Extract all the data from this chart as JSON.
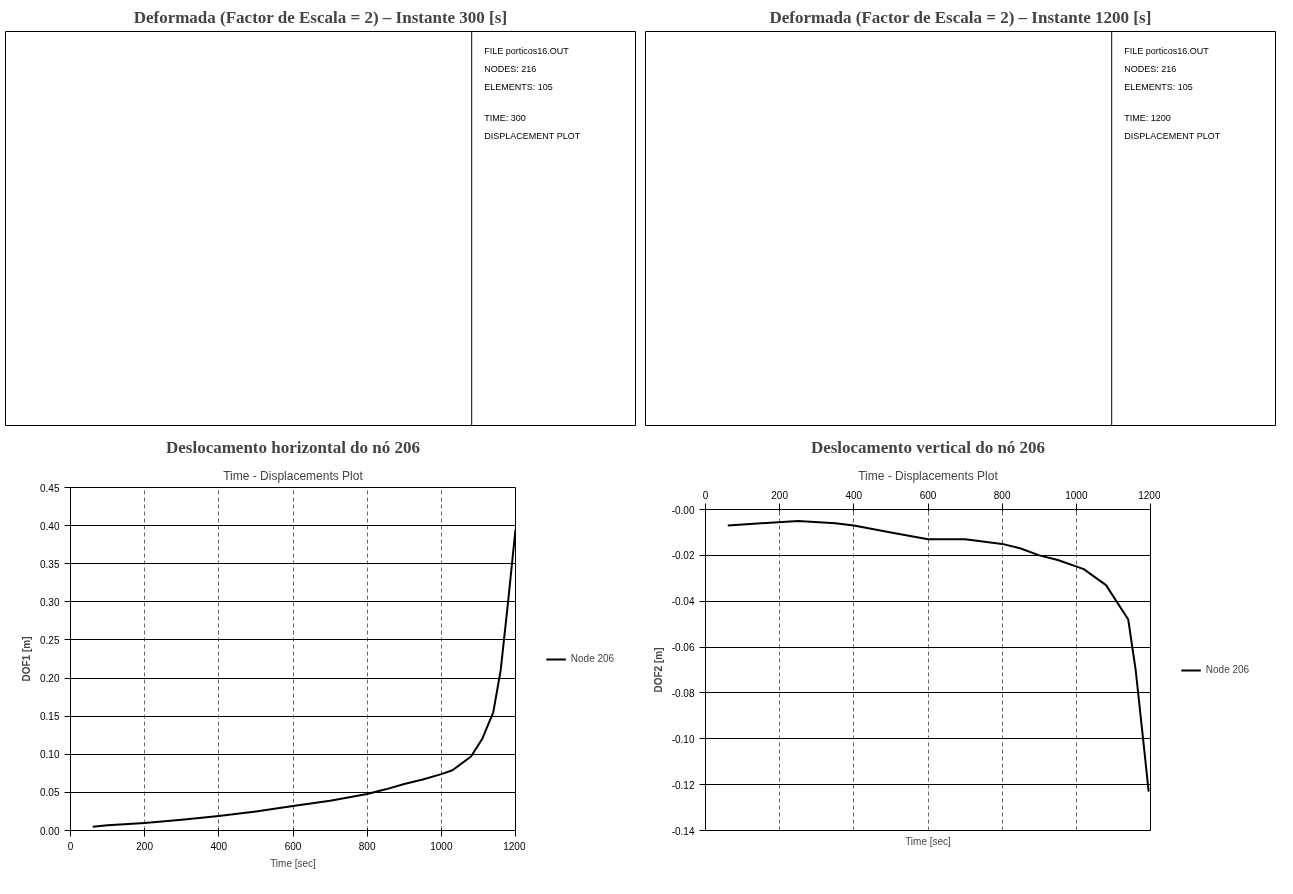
{
  "chart_data": [
    {
      "type": "other",
      "title": "Deformada (Factor de Escala = 2) – Instante 300 [s]",
      "annotations": [
        "FILE porticos16.OUT",
        "NODES: 216",
        "ELEMENTS: 105",
        "TIME: 300",
        "DISPLACEMENT PLOT"
      ]
    },
    {
      "type": "other",
      "title": "Deformada (Factor de Escala = 2) – Instante 1200 [s]",
      "annotations": [
        "FILE porticos16.OUT",
        "NODES: 216",
        "ELEMENTS: 105",
        "TIME: 1200",
        "DISPLACEMENT PLOT"
      ]
    },
    {
      "type": "line",
      "title": "Deslocamento horizontal do nó 206",
      "subtitle": "Time - Displacements Plot",
      "xlabel": "Time [sec]",
      "ylabel": "DOF1 [m]",
      "x": [
        60,
        100,
        200,
        300,
        400,
        500,
        600,
        700,
        800,
        850,
        900,
        950,
        1000,
        1030,
        1080,
        1110,
        1140,
        1160,
        1180,
        1200
      ],
      "series": [
        {
          "name": "Node 206",
          "color": "#000000",
          "values": [
            0.005,
            0.007,
            0.01,
            0.014,
            0.019,
            0.025,
            0.032,
            0.039,
            0.048,
            0.054,
            0.061,
            0.067,
            0.074,
            0.079,
            0.097,
            0.12,
            0.155,
            0.21,
            0.3,
            0.395
          ]
        }
      ],
      "xlim": [
        0,
        1200
      ],
      "xticks": [
        0,
        200,
        400,
        600,
        800,
        1000,
        1200
      ],
      "ylim": [
        0,
        0.45
      ],
      "yticks": [
        {
          "value": 0,
          "label": "0.00"
        },
        0.05,
        {
          "value": 0.1,
          "label": "0.10"
        },
        0.15,
        {
          "value": 0.2,
          "label": "0.20"
        },
        0.25,
        {
          "value": 0.3,
          "label": "0.30"
        },
        0.35,
        {
          "value": 0.4,
          "label": "0.40"
        },
        0.45
      ],
      "grid": true,
      "legend": "right"
    },
    {
      "type": "line",
      "title": "Deslocamento vertical do nó 206",
      "subtitle": "Time - Displacements Plot",
      "xlabel": "Time [sec]",
      "ylabel": "DOF2 [m]",
      "x": [
        60,
        150,
        250,
        350,
        400,
        500,
        600,
        700,
        800,
        850,
        900,
        950,
        1020,
        1080,
        1140,
        1160,
        1180,
        1195
      ],
      "series": [
        {
          "name": "Node 206",
          "color": "#000000",
          "values": [
            -0.007,
            -0.006,
            -0.005,
            -0.006,
            -0.007,
            -0.01,
            -0.013,
            -0.013,
            -0.015,
            -0.017,
            -0.02,
            -0.022,
            -0.026,
            -0.033,
            -0.048,
            -0.07,
            -0.1,
            -0.123
          ]
        }
      ],
      "xlim": [
        0,
        1200
      ],
      "x2lim": [
        0,
        1200
      ],
      "x2ticks": [
        0,
        200,
        400,
        600,
        800,
        1000,
        1200
      ],
      "ylim": [
        -0.14,
        0
      ],
      "yticks": [
        {
          "value": -0.14,
          "label": "-0.14"
        },
        {
          "value": -0.12,
          "label": "-0.12"
        },
        {
          "value": -0.1,
          "label": "-0.10"
        },
        {
          "value": -0.08,
          "label": "-0.08"
        },
        {
          "value": -0.06,
          "label": "-0.06"
        },
        {
          "value": -0.04,
          "label": "-0.04"
        },
        {
          "value": -0.02,
          "label": "-0.02"
        },
        {
          "value": 0,
          "label": "-0.00"
        }
      ],
      "grid": true,
      "legend": "right"
    }
  ]
}
